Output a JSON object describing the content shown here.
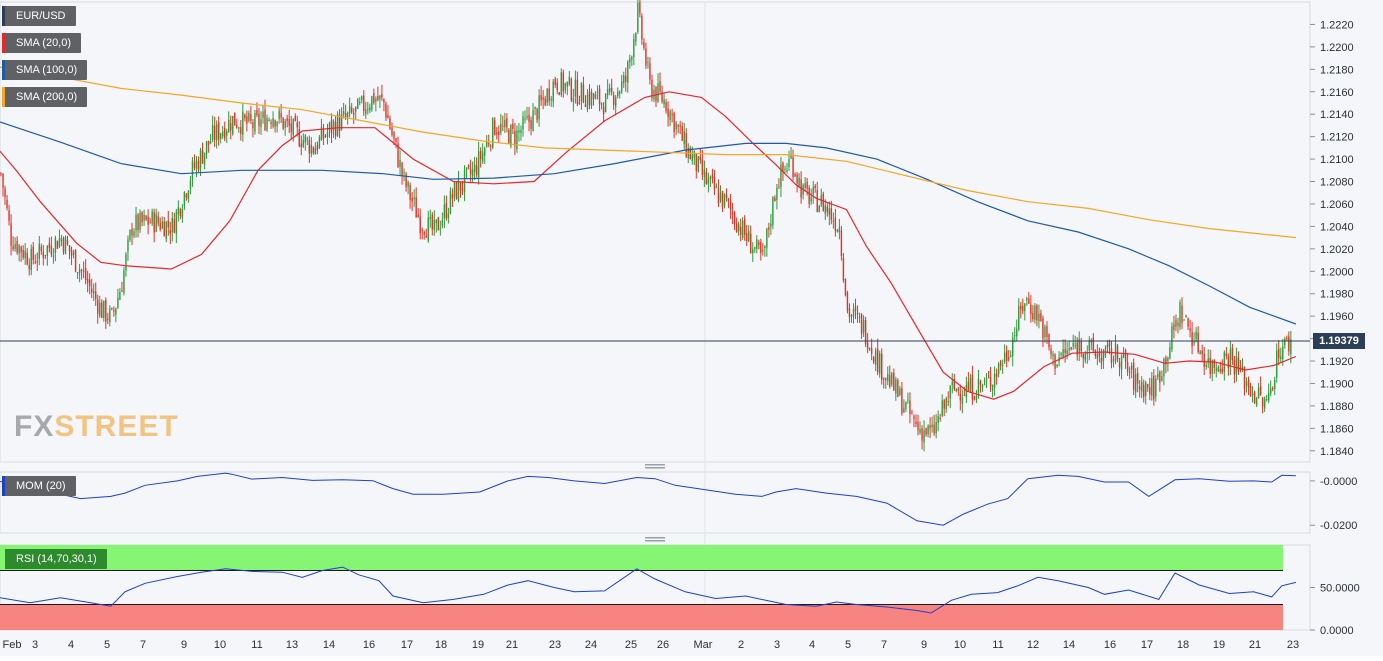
{
  "chart_data": [
    {
      "type": "candlestick",
      "panel": "price",
      "symbol": "EUR/USD",
      "legend": [
        "EUR/USD",
        "SMA (20,0)",
        "SMA (100,0)",
        "SMA (200,0)"
      ],
      "last_price": "1.19379",
      "ylim": [
        1.183,
        1.224
      ],
      "yticks": [
        "1.1840",
        "1.1860",
        "1.1880",
        "1.1900",
        "1.1920",
        "1.1940",
        "1.1960",
        "1.1980",
        "1.2000",
        "1.2020",
        "1.2040",
        "1.2060",
        "1.2080",
        "1.2100",
        "1.2120",
        "1.2140",
        "1.2160",
        "1.2180",
        "1.2200",
        "1.2220"
      ],
      "series": [
        {
          "name": "SMA (20,0)",
          "color": "#e8262b",
          "points": [
            [
              0,
              1.2107
            ],
            [
              8,
              1.209
            ],
            [
              20,
              1.2062
            ],
            [
              38,
              1.2025
            ],
            [
              50,
              1.2008
            ],
            [
              62,
              1.2005
            ],
            [
              85,
              1.2002
            ],
            [
              100,
              1.2015
            ],
            [
              114,
              1.2045
            ],
            [
              128,
              1.209
            ],
            [
              140,
              1.2112
            ],
            [
              150,
              1.2125
            ],
            [
              168,
              1.2128
            ],
            [
              186,
              1.2128
            ],
            [
              205,
              1.21
            ],
            [
              225,
              1.208
            ],
            [
              245,
              1.2078
            ],
            [
              265,
              1.208
            ],
            [
              281,
              1.2106
            ],
            [
              300,
              1.2134
            ],
            [
              320,
              1.2155
            ],
            [
              332,
              1.216
            ],
            [
              348,
              1.2155
            ],
            [
              360,
              1.2138
            ],
            [
              373,
              1.2115
            ],
            [
              385,
              1.2095
            ],
            [
              395,
              1.2077
            ],
            [
              405,
              1.2065
            ],
            [
              420,
              1.2055
            ],
            [
              430,
              1.2022
            ],
            [
              442,
              1.199
            ],
            [
              455,
              1.195
            ],
            [
              468,
              1.191
            ],
            [
              480,
              1.1893
            ],
            [
              493,
              1.1886
            ],
            [
              503,
              1.1893
            ],
            [
              518,
              1.1915
            ],
            [
              532,
              1.1927
            ],
            [
              548,
              1.1928
            ],
            [
              563,
              1.1926
            ],
            [
              578,
              1.1918
            ],
            [
              590,
              1.192
            ],
            [
              603,
              1.1919
            ],
            [
              618,
              1.1912
            ],
            [
              632,
              1.1916
            ],
            [
              643,
              1.1924
            ]
          ]
        },
        {
          "name": "SMA (100,0)",
          "color": "#1e5aa8",
          "points": [
            [
              0,
              1.2133
            ],
            [
              30,
              1.2115
            ],
            [
              60,
              1.2096
            ],
            [
              90,
              1.2087
            ],
            [
              120,
              1.209
            ],
            [
              160,
              1.209
            ],
            [
              190,
              1.2087
            ],
            [
              215,
              1.2082
            ],
            [
              245,
              1.2083
            ],
            [
              275,
              1.2087
            ],
            [
              305,
              1.2096
            ],
            [
              340,
              1.2108
            ],
            [
              370,
              1.2114
            ],
            [
              390,
              1.2114
            ],
            [
              410,
              1.211
            ],
            [
              435,
              1.21
            ],
            [
              460,
              1.2082
            ],
            [
              485,
              1.2062
            ],
            [
              510,
              1.2045
            ],
            [
              535,
              1.2035
            ],
            [
              560,
              1.202
            ],
            [
              580,
              1.2005
            ],
            [
              600,
              1.1987
            ],
            [
              620,
              1.1968
            ],
            [
              643,
              1.1953
            ]
          ]
        },
        {
          "name": "SMA (200,0)",
          "color": "#f5a623",
          "points": [
            [
              0,
              1.2182
            ],
            [
              30,
              1.2173
            ],
            [
              60,
              1.2163
            ],
            [
              90,
              1.2157
            ],
            [
              120,
              1.215
            ],
            [
              150,
              1.2144
            ],
            [
              180,
              1.2134
            ],
            [
              210,
              1.2124
            ],
            [
              240,
              1.2116
            ],
            [
              270,
              1.211
            ],
            [
              300,
              1.2108
            ],
            [
              330,
              1.2106
            ],
            [
              360,
              1.2104
            ],
            [
              390,
              1.2104
            ],
            [
              420,
              1.2098
            ],
            [
              450,
              1.2085
            ],
            [
              480,
              1.2072
            ],
            [
              510,
              1.2062
            ],
            [
              540,
              1.2056
            ],
            [
              570,
              1.2046
            ],
            [
              600,
              1.2038
            ],
            [
              643,
              1.203
            ]
          ]
        }
      ]
    },
    {
      "type": "line",
      "panel": "momentum",
      "legend": "MOM (20)",
      "ylim": [
        -0.0235,
        0.004
      ],
      "yticks": [
        "-0.0000",
        "-0.0200"
      ],
      "series": [
        {
          "name": "MOM (20)",
          "color": "#1e3fcc",
          "points": [
            [
              0,
              -0.0003
            ],
            [
              10,
              -0.002
            ],
            [
              25,
              -0.005
            ],
            [
              40,
              -0.008
            ],
            [
              55,
              -0.007
            ],
            [
              62,
              -0.0055
            ],
            [
              72,
              -0.002
            ],
            [
              88,
              0.0
            ],
            [
              98,
              0.002
            ],
            [
              112,
              0.0035
            ],
            [
              115,
              0.003
            ],
            [
              125,
              0.0008
            ],
            [
              140,
              0.0015
            ],
            [
              155,
              0.0002
            ],
            [
              170,
              0.0005
            ],
            [
              185,
              0.0001
            ],
            [
              195,
              -0.0035
            ],
            [
              205,
              -0.006
            ],
            [
              220,
              -0.006
            ],
            [
              238,
              -0.005
            ],
            [
              252,
              0.0
            ],
            [
              262,
              0.002
            ],
            [
              272,
              0.0015
            ],
            [
              285,
              0.0
            ],
            [
              300,
              -0.0012
            ],
            [
              316,
              0.0015
            ],
            [
              325,
              0.001
            ],
            [
              335,
              -0.002
            ],
            [
              350,
              -0.004
            ],
            [
              365,
              -0.006
            ],
            [
              378,
              -0.007
            ],
            [
              385,
              -0.005
            ],
            [
              395,
              -0.0035
            ],
            [
              410,
              -0.0055
            ],
            [
              425,
              -0.007
            ],
            [
              440,
              -0.01
            ],
            [
              455,
              -0.018
            ],
            [
              468,
              -0.02
            ],
            [
              478,
              -0.015
            ],
            [
              490,
              -0.0105
            ],
            [
              500,
              -0.008
            ],
            [
              510,
              0.001
            ],
            [
              525,
              0.0025
            ],
            [
              535,
              0.002
            ],
            [
              548,
              -0.0005
            ],
            [
              560,
              -0.0005
            ],
            [
              570,
              -0.007
            ],
            [
              583,
              0.0005
            ],
            [
              595,
              0.001
            ],
            [
              610,
              -0.0002
            ],
            [
              622,
              0.0
            ],
            [
              631,
              -0.0005
            ],
            [
              636,
              0.0025
            ],
            [
              643,
              0.0023
            ]
          ]
        }
      ]
    },
    {
      "type": "line",
      "panel": "rsi",
      "legend": "RSI (14,70,30,1)",
      "ylim": [
        0,
        100
      ],
      "overbought": 70,
      "oversold": 30,
      "yticks": [
        "0.0000",
        "50.0000"
      ],
      "series": [
        {
          "name": "RSI (14,70,30,1)",
          "color": "#1e3fcc",
          "points": [
            [
              0,
              38
            ],
            [
              15,
              32
            ],
            [
              30,
              38
            ],
            [
              45,
              32
            ],
            [
              55,
              28
            ],
            [
              62,
              45
            ],
            [
              72,
              55
            ],
            [
              88,
              63
            ],
            [
              100,
              68
            ],
            [
              112,
              72
            ],
            [
              125,
              69
            ],
            [
              140,
              68
            ],
            [
              150,
              62
            ],
            [
              160,
              70
            ],
            [
              170,
              74
            ],
            [
              178,
              65
            ],
            [
              188,
              58
            ],
            [
              195,
              40
            ],
            [
              210,
              32
            ],
            [
              225,
              36
            ],
            [
              240,
              42
            ],
            [
              252,
              53
            ],
            [
              262,
              58
            ],
            [
              275,
              50
            ],
            [
              285,
              45
            ],
            [
              300,
              46
            ],
            [
              316,
              72
            ],
            [
              325,
              60
            ],
            [
              340,
              45
            ],
            [
              355,
              37
            ],
            [
              370,
              40
            ],
            [
              380,
              35
            ],
            [
              390,
              30
            ],
            [
              405,
              28
            ],
            [
              415,
              33
            ],
            [
              425,
              30
            ],
            [
              440,
              27
            ],
            [
              455,
              23
            ],
            [
              462,
              20
            ],
            [
              472,
              35
            ],
            [
              482,
              42
            ],
            [
              495,
              44
            ],
            [
              505,
              52
            ],
            [
              515,
              62
            ],
            [
              525,
              58
            ],
            [
              540,
              50
            ],
            [
              548,
              42
            ],
            [
              560,
              47
            ],
            [
              575,
              36
            ],
            [
              583,
              67
            ],
            [
              595,
              53
            ],
            [
              610,
              43
            ],
            [
              622,
              45
            ],
            [
              631,
              39
            ],
            [
              636,
              52
            ],
            [
              643,
              56
            ]
          ]
        }
      ]
    }
  ],
  "xaxis": {
    "labels": [
      "Feb",
      "3",
      "4",
      "5",
      "7",
      "9",
      "10",
      "11",
      "13",
      "14",
      "16",
      "17",
      "18",
      "19",
      "21",
      "23",
      "24",
      "25",
      "26",
      "Mar",
      "2",
      "3",
      "4",
      "5",
      "7",
      "9",
      "10",
      "11",
      "12",
      "14",
      "16",
      "17",
      "18",
      "19",
      "21",
      "23"
    ]
  },
  "colors": {
    "bull": "#2e9c3b",
    "bear": "#e03327",
    "rsi_overbought_fill": "#86f573",
    "rsi_oversold_fill": "#f78480",
    "price_line": "#2c3e57"
  },
  "logo": {
    "fx": "FX",
    "street": "STREET"
  }
}
